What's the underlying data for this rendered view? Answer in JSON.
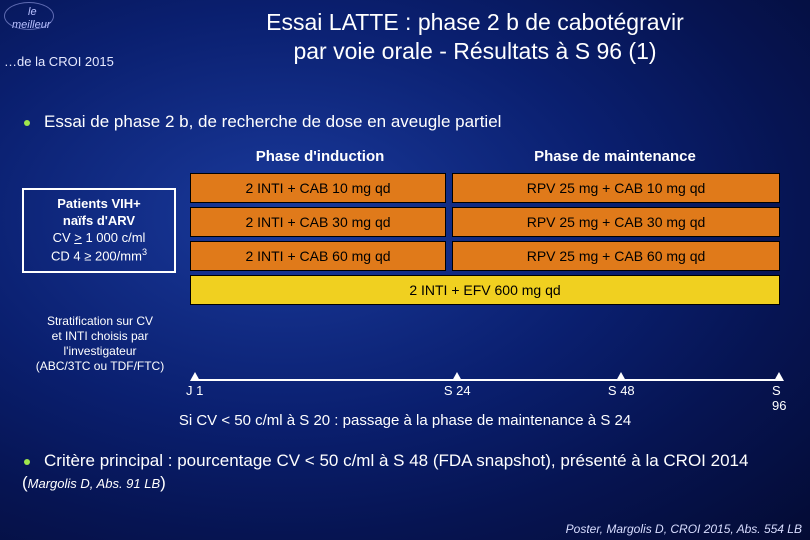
{
  "logo": {
    "le": "le",
    "meilleur": "meilleur"
  },
  "source": "…de la CROI 2015",
  "title_l1": "Essai LATTE : phase 2 b de cabotégravir",
  "title_l2": "par voie orale - Résultats à S 96 (1)",
  "bullet1": "Essai de phase 2 b, de recherche de dose en aveugle partiel",
  "table": {
    "colors": {
      "arm": "#e07a1a",
      "efv": "#f0d020",
      "border": "#000000"
    },
    "header_induction": "Phase d'induction",
    "header_maintenance": "Phase de maintenance",
    "rows": [
      {
        "induction": "2 INTI + CAB 10 mg qd",
        "maintenance": "RPV 25 mg + CAB 10 mg qd"
      },
      {
        "induction": "2 INTI + CAB 30 mg qd",
        "maintenance": "RPV 25 mg + CAB 30 mg qd"
      },
      {
        "induction": "2 INTI + CAB 60 mg qd",
        "maintenance": "RPV 25 mg + CAB 60 mg qd"
      }
    ],
    "efv_row": "2 INTI + EFV 600 mg qd"
  },
  "patients": {
    "l1": "Patients VIH+",
    "l2": "naïfs d'ARV",
    "l3a": "CV ",
    "l3b": " 1 000 c/ml",
    "l4a": "CD 4 ≥ 200/mm",
    "l4sup": "3"
  },
  "strat": {
    "l1": "Stratification sur CV",
    "l2": "et INTI choisis par",
    "l3": "l'investigateur",
    "l4": "(ABC/3TC ou TDF/FTC)"
  },
  "timeline": {
    "ticks": [
      {
        "label": "J 1",
        "pct": 0
      },
      {
        "label": "S 24",
        "pct": 44
      },
      {
        "label": "S 48",
        "pct": 72
      },
      {
        "label": "S 96",
        "pct": 100
      }
    ]
  },
  "foot1": "Si CV < 50 c/ml à S 20 : passage à la phase de maintenance à S 24",
  "bullet2_a": "Critère principal : pourcentage CV < 50 c/ml à S 48 (FDA snapshot), présenté à la CROI 2014 (",
  "bullet2_b": "Margolis D, Abs. 91 LB",
  "bullet2_c": ")",
  "credit": "Poster, Margolis D, CROI 2015, Abs. 554 LB"
}
